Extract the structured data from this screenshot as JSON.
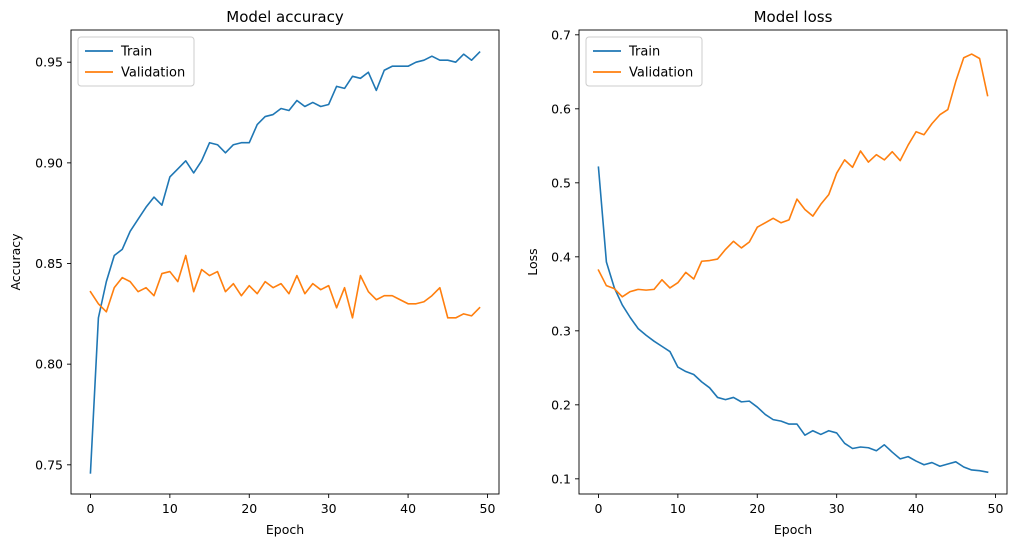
{
  "colors": {
    "train": "#1f77b4",
    "validation": "#ff7f0e",
    "axis": "#000000",
    "legend_border": "#cccccc"
  },
  "chart_data": [
    {
      "type": "line",
      "title": "Model accuracy",
      "xlabel": "Epoch",
      "ylabel": "Accuracy",
      "xlim": [
        -2.45,
        51.45
      ],
      "ylim": [
        0.7355,
        0.966
      ],
      "xticks": [
        0,
        10,
        20,
        30,
        40,
        50
      ],
      "yticks": [
        0.75,
        0.8,
        0.85,
        0.9,
        0.95
      ],
      "ytick_labels": [
        "0.75",
        "0.80",
        "0.85",
        "0.90",
        "0.95"
      ],
      "xtick_labels": [
        "0",
        "10",
        "20",
        "30",
        "40",
        "50"
      ],
      "grid": false,
      "legend_position": "upper-left",
      "x": [
        0,
        1,
        2,
        3,
        4,
        5,
        6,
        7,
        8,
        9,
        10,
        11,
        12,
        13,
        14,
        15,
        16,
        17,
        18,
        19,
        20,
        21,
        22,
        23,
        24,
        25,
        26,
        27,
        28,
        29,
        30,
        31,
        32,
        33,
        34,
        35,
        36,
        37,
        38,
        39,
        40,
        41,
        42,
        43,
        44,
        45,
        46,
        47,
        48,
        49
      ],
      "series": [
        {
          "name": "Train",
          "color": "#1f77b4",
          "values": [
            0.746,
            0.823,
            0.841,
            0.854,
            0.857,
            0.866,
            0.872,
            0.878,
            0.883,
            0.879,
            0.893,
            0.897,
            0.901,
            0.895,
            0.901,
            0.91,
            0.909,
            0.905,
            0.909,
            0.91,
            0.91,
            0.919,
            0.923,
            0.924,
            0.927,
            0.926,
            0.931,
            0.928,
            0.93,
            0.928,
            0.929,
            0.938,
            0.937,
            0.943,
            0.942,
            0.945,
            0.936,
            0.946,
            0.948,
            0.948,
            0.948,
            0.95,
            0.951,
            0.953,
            0.951,
            0.951,
            0.95,
            0.954,
            0.951,
            0.955
          ]
        },
        {
          "name": "Validation",
          "color": "#ff7f0e",
          "values": [
            0.836,
            0.83,
            0.826,
            0.838,
            0.843,
            0.841,
            0.836,
            0.838,
            0.834,
            0.845,
            0.846,
            0.841,
            0.854,
            0.836,
            0.847,
            0.844,
            0.846,
            0.836,
            0.84,
            0.834,
            0.839,
            0.835,
            0.841,
            0.838,
            0.84,
            0.835,
            0.844,
            0.835,
            0.84,
            0.837,
            0.839,
            0.828,
            0.838,
            0.823,
            0.844,
            0.836,
            0.832,
            0.834,
            0.834,
            0.832,
            0.83,
            0.83,
            0.831,
            0.834,
            0.838,
            0.823,
            0.823,
            0.825,
            0.824,
            0.828
          ]
        }
      ]
    },
    {
      "type": "line",
      "title": "Model loss",
      "xlabel": "Epoch",
      "ylabel": "Loss",
      "xlim": [
        -2.45,
        51.45
      ],
      "ylim": [
        0.0795,
        0.7065
      ],
      "xticks": [
        0,
        10,
        20,
        30,
        40,
        50
      ],
      "yticks": [
        0.1,
        0.2,
        0.3,
        0.4,
        0.5,
        0.6,
        0.7
      ],
      "ytick_labels": [
        "0.1",
        "0.2",
        "0.3",
        "0.4",
        "0.5",
        "0.6",
        "0.7"
      ],
      "xtick_labels": [
        "0",
        "10",
        "20",
        "30",
        "40",
        "50"
      ],
      "grid": false,
      "legend_position": "upper-left",
      "x": [
        0,
        1,
        2,
        3,
        4,
        5,
        6,
        7,
        8,
        9,
        10,
        11,
        12,
        13,
        14,
        15,
        16,
        17,
        18,
        19,
        20,
        21,
        22,
        23,
        24,
        25,
        26,
        27,
        28,
        29,
        30,
        31,
        32,
        33,
        34,
        35,
        36,
        37,
        38,
        39,
        40,
        41,
        42,
        43,
        44,
        45,
        46,
        47,
        48,
        49
      ],
      "series": [
        {
          "name": "Train",
          "color": "#1f77b4",
          "values": [
            0.521,
            0.393,
            0.358,
            0.335,
            0.318,
            0.303,
            0.294,
            0.286,
            0.279,
            0.272,
            0.251,
            0.245,
            0.241,
            0.231,
            0.223,
            0.21,
            0.207,
            0.21,
            0.204,
            0.205,
            0.197,
            0.187,
            0.18,
            0.178,
            0.174,
            0.174,
            0.159,
            0.165,
            0.16,
            0.165,
            0.162,
            0.148,
            0.141,
            0.143,
            0.142,
            0.138,
            0.146,
            0.136,
            0.127,
            0.13,
            0.124,
            0.119,
            0.122,
            0.117,
            0.12,
            0.123,
            0.116,
            0.112,
            0.111,
            0.109
          ]
        },
        {
          "name": "Validation",
          "color": "#ff7f0e",
          "values": [
            0.382,
            0.361,
            0.357,
            0.346,
            0.353,
            0.356,
            0.355,
            0.356,
            0.369,
            0.358,
            0.365,
            0.379,
            0.37,
            0.394,
            0.395,
            0.397,
            0.41,
            0.421,
            0.412,
            0.42,
            0.44,
            0.446,
            0.452,
            0.446,
            0.45,
            0.478,
            0.464,
            0.455,
            0.471,
            0.484,
            0.513,
            0.531,
            0.521,
            0.543,
            0.528,
            0.538,
            0.531,
            0.542,
            0.53,
            0.551,
            0.569,
            0.565,
            0.58,
            0.592,
            0.599,
            0.637,
            0.669,
            0.674,
            0.668,
            0.618
          ]
        }
      ]
    }
  ]
}
